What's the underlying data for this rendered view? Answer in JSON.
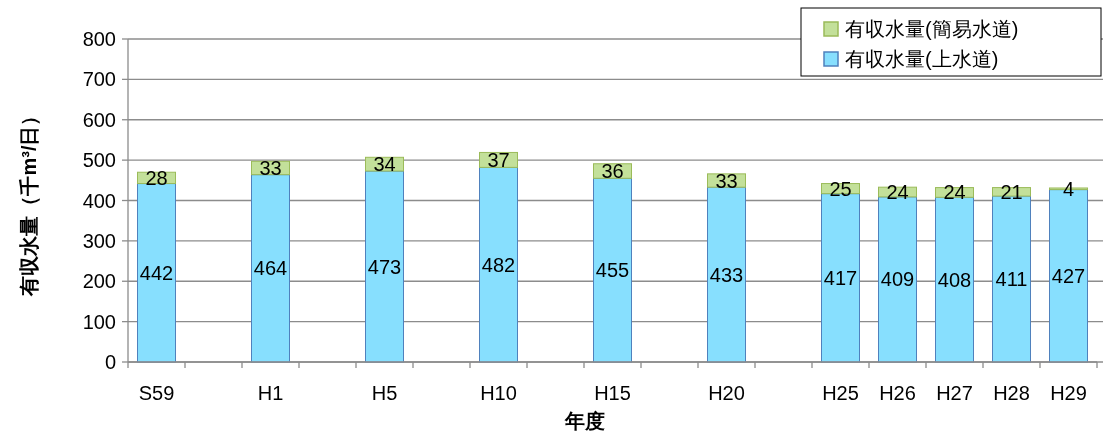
{
  "chart_data": {
    "type": "bar",
    "stacked": true,
    "xlabel": "年度",
    "ylabel": "有収水量（千m³/日）",
    "categories": [
      "S59",
      null,
      "H1",
      null,
      "H5",
      null,
      "H10",
      null,
      "H15",
      null,
      "H20",
      null,
      "H25",
      "H26",
      "H27",
      "H28",
      "H29"
    ],
    "series": [
      {
        "name": "有収水量(上水道)",
        "color": "#87dffe",
        "values": [
          442,
          null,
          464,
          null,
          473,
          null,
          482,
          null,
          455,
          null,
          433,
          null,
          417,
          409,
          408,
          411,
          427
        ]
      },
      {
        "name": "有収水量(簡易水道)",
        "color": "#c3e09a",
        "values": [
          28,
          null,
          33,
          null,
          34,
          null,
          37,
          null,
          36,
          null,
          33,
          null,
          25,
          24,
          24,
          21,
          4
        ]
      }
    ],
    "ylim": [
      0,
      800
    ],
    "yticks": [
      0,
      100,
      200,
      300,
      400,
      500,
      600,
      700,
      800
    ],
    "grid": "y",
    "legend": "top right",
    "data_labels": true
  }
}
